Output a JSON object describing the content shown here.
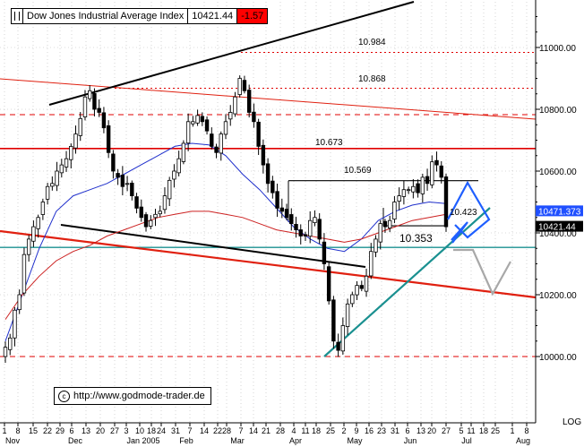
{
  "legend": {
    "name": "Dow Jones Industrial Average Index",
    "value": "10421.44",
    "change": "-1.57"
  },
  "credit": {
    "text": "http://www.godmode-trader.de"
  },
  "scale_toggle": "LOG",
  "colors": {
    "candle": "#000000",
    "ma_blue": "#2030cc",
    "ma_red": "#cc2020",
    "trend_red": "#e02010",
    "resistance_red": "#e00000",
    "teal": "#1a9090",
    "pattern_blue": "#1f5fff",
    "projection_gray": "#a8a8a8",
    "value_box_blue": "#1f4fff",
    "value_box_black": "#000000"
  },
  "chart_data": {
    "type": "candlestick",
    "title": "Dow Jones Industrial Average Index",
    "x_axis": {
      "tick_labels": [
        "1",
        "8",
        "15",
        "22",
        "29",
        "6",
        "13",
        "20",
        "27",
        "3",
        "10",
        "18",
        "24",
        "31",
        "7",
        "14",
        "22",
        "28",
        "7",
        "14",
        "21",
        "28",
        "4",
        "11",
        "18",
        "25",
        "2",
        "9",
        "16",
        "23",
        "31",
        "6",
        "13",
        "20",
        "27",
        "5",
        "11",
        "18",
        "25",
        "1",
        "8"
      ],
      "month_labels": [
        "Nov",
        "Dec",
        "Jan 2005",
        "Feb",
        "Mar",
        "Apr",
        "May",
        "Jun",
        "Jul",
        "Aug"
      ]
    },
    "y_axis": {
      "tick_labels": [
        "10000.00",
        "10200.00",
        "10400.00",
        "10600.00",
        "10800.00",
        "11000.00"
      ],
      "ylim": [
        9950,
        11200
      ],
      "scale_toggle": "LOG"
    },
    "price_series_close": [
      10030,
      10060,
      10150,
      10200,
      10330,
      10380,
      10420,
      10450,
      10500,
      10550,
      10560,
      10600,
      10620,
      10640,
      10680,
      10720,
      10770,
      10840,
      10860,
      10800,
      10790,
      10740,
      10660,
      10600,
      10580,
      10550,
      10560,
      10520,
      10480,
      10450,
      10420,
      10440,
      10460,
      10470,
      10520,
      10570,
      10600,
      10640,
      10690,
      10760,
      10760,
      10780,
      10760,
      10730,
      10680,
      10660,
      10720,
      10760,
      10790,
      10840,
      10900,
      10860,
      10790,
      10760,
      10680,
      10620,
      10560,
      10530,
      10480,
      10470,
      10450,
      10430,
      10410,
      10390,
      10390,
      10440,
      10450,
      10380,
      10300,
      10180,
      10050,
      10020,
      10100,
      10170,
      10200,
      10230,
      10220,
      10260,
      10340,
      10380,
      10430,
      10420,
      10440,
      10500,
      10520,
      10540,
      10540,
      10550,
      10530,
      10580,
      10560,
      10630,
      10620,
      10580,
      10420
    ],
    "moving_averages": [
      {
        "name": "",
        "color": "blue",
        "values": [
          10050,
          10200,
          10350,
          10470,
          10520,
          10540,
          10560,
          10590,
          10620,
          10650,
          10680,
          10690,
          10685,
          10650,
          10590,
          10540,
          10480,
          10420,
          10380,
          10350,
          10340,
          10380,
          10440,
          10470,
          10490,
          10500,
          10495
        ]
      },
      {
        "name": "",
        "color": "red",
        "values": [
          10120,
          10200,
          10260,
          10310,
          10340,
          10360,
          10390,
          10410,
          10430,
          10450,
          10460,
          10470,
          10470,
          10460,
          10450,
          10430,
          10410,
          10400,
          10390,
          10380,
          10370,
          10380,
          10400,
          10420,
          10440,
          10450,
          10460
        ]
      }
    ],
    "horizontal_levels": [
      {
        "label": "10.984",
        "value": 10984,
        "style": "dotted-red"
      },
      {
        "label": "10.868",
        "value": 10868,
        "style": "dotted-red"
      },
      {
        "label": "10.673",
        "value": 10673,
        "style": "solid-red"
      },
      {
        "label": "10.569",
        "value": 10569,
        "style": "solid-black"
      },
      {
        "label": "10.423",
        "value": 10423,
        "style": "solid-black"
      },
      {
        "label": "10.353",
        "value": 10353,
        "style": "solid-teal"
      }
    ],
    "value_boxes": [
      {
        "label": "10471.373",
        "value": 10471.373,
        "color": "blue"
      },
      {
        "label": "10421.44",
        "value": 10421.44,
        "color": "black"
      }
    ]
  }
}
